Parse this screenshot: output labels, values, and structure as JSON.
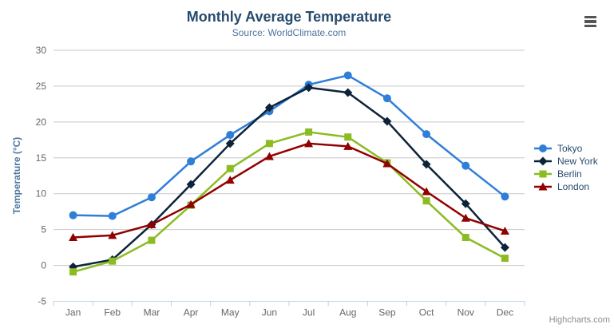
{
  "chart": {
    "title": "Monthly Average Temperature",
    "subtitle": "Source: WorldClimate.com",
    "yaxis_title": "Temperature (°C)",
    "credits": "Highcharts.com",
    "export_icon": "hamburger-menu-icon",
    "colors": {
      "title": "#274b6d",
      "subtitle": "#4d759e",
      "axis_label": "#666666",
      "gridline": "#c8c8c8",
      "axis_line": "#c0d0e0",
      "legend_text": "#274b6d",
      "credits_text": "#8c8c8c"
    }
  },
  "chart_data": {
    "type": "line",
    "title": "Monthly Average Temperature",
    "subtitle": "Source: WorldClimate.com",
    "xlabel": "",
    "ylabel": "Temperature (°C)",
    "categories": [
      "Jan",
      "Feb",
      "Mar",
      "Apr",
      "May",
      "Jun",
      "Jul",
      "Aug",
      "Sep",
      "Oct",
      "Nov",
      "Dec"
    ],
    "ylim": [
      -5,
      30
    ],
    "ytick_interval": 5,
    "yticks": [
      -5,
      0,
      5,
      10,
      15,
      20,
      25,
      30
    ],
    "grid": true,
    "legend_position": "right",
    "series": [
      {
        "name": "Tokyo",
        "color": "#2f7ed8",
        "marker": "circle",
        "values": [
          7.0,
          6.9,
          9.5,
          14.5,
          18.2,
          21.5,
          25.2,
          26.5,
          23.3,
          18.3,
          13.9,
          9.6
        ]
      },
      {
        "name": "New York",
        "color": "#0d233a",
        "marker": "diamond",
        "values": [
          -0.2,
          0.8,
          5.7,
          11.3,
          17.0,
          22.0,
          24.8,
          24.1,
          20.1,
          14.1,
          8.6,
          2.5
        ]
      },
      {
        "name": "Berlin",
        "color": "#8bbc21",
        "marker": "square",
        "values": [
          -0.9,
          0.6,
          3.5,
          8.4,
          13.5,
          17.0,
          18.6,
          17.9,
          14.3,
          9.0,
          3.9,
          1.0
        ]
      },
      {
        "name": "London",
        "color": "#910000",
        "marker": "triangle",
        "values": [
          3.9,
          4.2,
          5.7,
          8.5,
          11.9,
          15.2,
          17.0,
          16.6,
          14.2,
          10.3,
          6.6,
          4.8
        ]
      }
    ]
  }
}
